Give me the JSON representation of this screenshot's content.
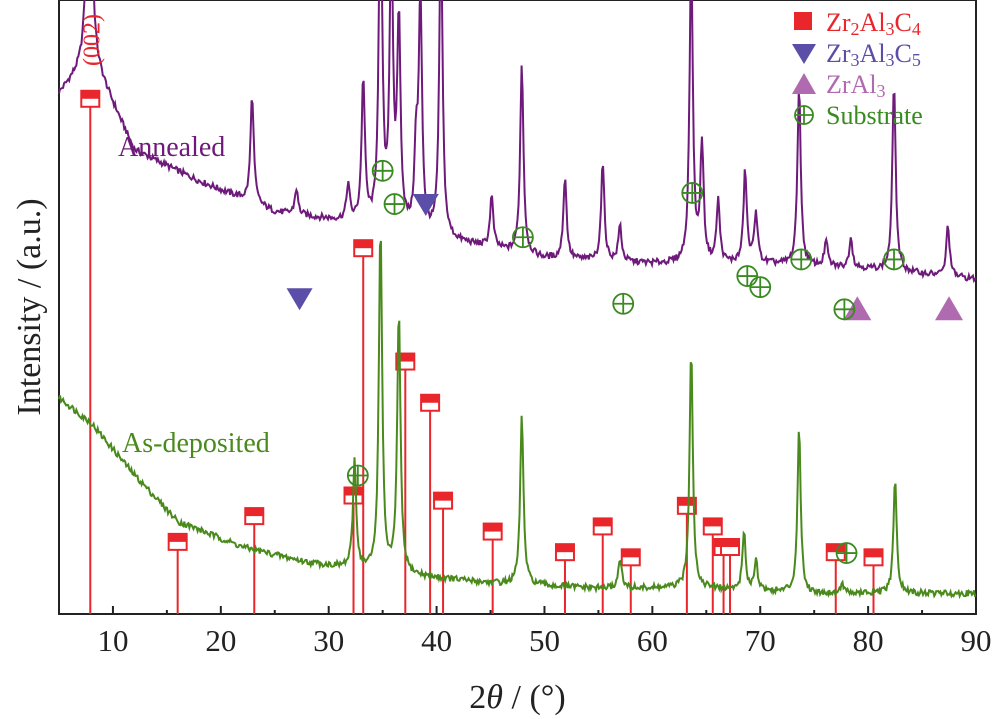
{
  "chart_data": {
    "type": "line",
    "xlabel": "2θ / (°)",
    "ylabel": "Intensity / (a.u.)",
    "xlim": [
      5,
      90
    ],
    "x_ticks": [
      10,
      20,
      30,
      40,
      50,
      60,
      70,
      80,
      90
    ],
    "y_ticks_shown": false,
    "peak_annotation": "(002)",
    "series": [
      {
        "name": "Annealed",
        "color": "#6e1a7a",
        "baseline": 0.18,
        "background": [
          [
            5,
            0.83
          ],
          [
            8,
            0.9
          ],
          [
            12,
            0.72
          ],
          [
            18,
            0.66
          ],
          [
            25,
            0.6
          ],
          [
            32,
            0.58
          ],
          [
            40,
            0.55
          ],
          [
            50,
            0.51
          ],
          [
            60,
            0.5
          ],
          [
            70,
            0.5
          ],
          [
            80,
            0.49
          ],
          [
            90,
            0.47
          ]
        ],
        "peaks": [
          [
            7.8,
            0.9
          ],
          [
            22.9,
            0.21
          ],
          [
            27.0,
            0.05
          ],
          [
            31.8,
            0.07
          ],
          [
            33.2,
            0.28
          ],
          [
            34.8,
            0.68
          ],
          [
            35.8,
            0.55
          ],
          [
            36.5,
            0.4
          ],
          [
            38.1,
            0.15
          ],
          [
            38.5,
            0.45
          ],
          [
            40.4,
            0.6
          ],
          [
            45.1,
            0.1
          ],
          [
            47.9,
            0.37
          ],
          [
            51.9,
            0.16
          ],
          [
            55.4,
            0.19
          ],
          [
            57.0,
            0.07
          ],
          [
            63.6,
            0.6
          ],
          [
            64.6,
            0.23
          ],
          [
            66.1,
            0.12
          ],
          [
            68.6,
            0.18
          ],
          [
            69.6,
            0.1
          ],
          [
            73.6,
            0.35
          ],
          [
            76.1,
            0.05
          ],
          [
            78.4,
            0.06
          ],
          [
            82.4,
            0.37
          ],
          [
            87.4,
            0.1
          ]
        ]
      },
      {
        "name": "As-deposited",
        "color": "#4a8a1c",
        "baseline": 0.0,
        "background": [
          [
            5,
            0.42
          ],
          [
            8,
            0.37
          ],
          [
            12,
            0.27
          ],
          [
            16,
            0.18
          ],
          [
            22,
            0.13
          ],
          [
            28,
            0.1
          ],
          [
            35,
            0.08
          ],
          [
            45,
            0.06
          ],
          [
            55,
            0.05
          ],
          [
            65,
            0.05
          ],
          [
            75,
            0.04
          ],
          [
            90,
            0.04
          ]
        ],
        "peaks": [
          [
            32.4,
            0.21
          ],
          [
            34.8,
            0.68
          ],
          [
            36.5,
            0.51
          ],
          [
            47.9,
            0.33
          ],
          [
            57.0,
            0.06
          ],
          [
            63.6,
            0.47
          ],
          [
            68.5,
            0.11
          ],
          [
            69.6,
            0.06
          ],
          [
            73.6,
            0.32
          ],
          [
            77.6,
            0.02
          ],
          [
            82.5,
            0.22
          ]
        ]
      }
    ],
    "reference_sticks": {
      "name": "Zr2Al3C4",
      "color": "#e8262b",
      "lines": [
        [
          7.9,
          1.0
        ],
        [
          16.0,
          0.14
        ],
        [
          23.1,
          0.19
        ],
        [
          32.3,
          0.23
        ],
        [
          33.2,
          0.71
        ],
        [
          37.1,
          0.49
        ],
        [
          39.4,
          0.41
        ],
        [
          40.6,
          0.22
        ],
        [
          45.2,
          0.16
        ],
        [
          51.9,
          0.12
        ],
        [
          55.4,
          0.17
        ],
        [
          58.0,
          0.11
        ],
        [
          63.2,
          0.21
        ],
        [
          65.6,
          0.17
        ],
        [
          66.6,
          0.13
        ],
        [
          67.2,
          0.13
        ],
        [
          77.0,
          0.12
        ],
        [
          80.5,
          0.11
        ]
      ]
    },
    "markers": {
      "Zr3Al3C5": [
        [
          27.3,
          0.57
        ],
        [
          39.0,
          0.74
        ]
      ],
      "ZrAl3": [
        [
          79.0,
          0.55
        ],
        [
          87.5,
          0.55
        ]
      ],
      "Substrate": [
        [
          35.0,
          0.8
        ],
        [
          36.1,
          0.74
        ],
        [
          48.0,
          0.68
        ],
        [
          57.3,
          0.56
        ],
        [
          63.7,
          0.76
        ],
        [
          68.8,
          0.61
        ],
        [
          70.0,
          0.59
        ],
        [
          73.8,
          0.64
        ],
        [
          77.8,
          0.55
        ],
        [
          82.4,
          0.64
        ],
        [
          32.7,
          0.25
        ],
        [
          78.0,
          0.11
        ]
      ]
    },
    "legend": {
      "placement": "top-right",
      "entries": [
        {
          "symbol": "filled-square",
          "color": "#e8262b",
          "label": "Zr2Al3C4",
          "formula": [
            "Zr",
            "2",
            "Al",
            "3",
            "C",
            "4"
          ]
        },
        {
          "symbol": "triangle-down",
          "color": "#5a4ea8",
          "label": "Zr3Al3C5",
          "formula": [
            "Zr",
            "3",
            "Al",
            "3",
            "C",
            "5"
          ]
        },
        {
          "symbol": "triangle-up",
          "color": "#b06ab0",
          "label": "ZrAl3",
          "formula": [
            "ZrAl",
            "3"
          ]
        },
        {
          "symbol": "circle-plus",
          "color": "#3a8a22",
          "label": "Substrate",
          "formula": [
            "Substrate"
          ]
        }
      ]
    },
    "curve_labels": {
      "annealed": "Annealed",
      "as_deposited": "As-deposited"
    }
  }
}
